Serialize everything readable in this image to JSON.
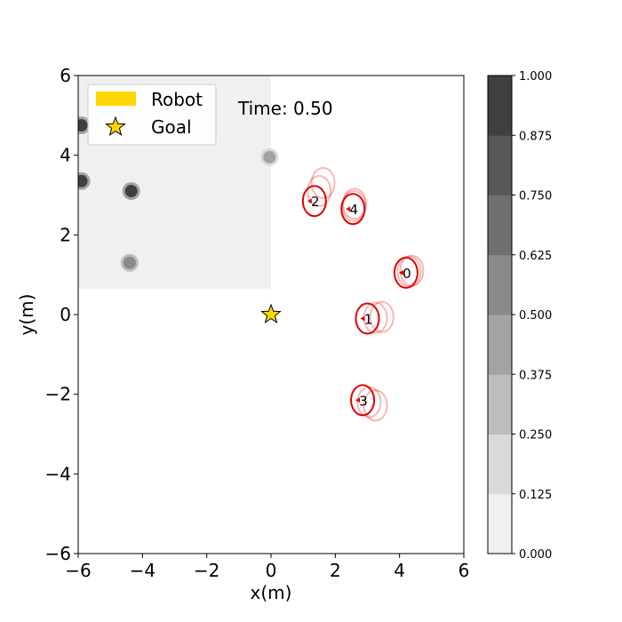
{
  "chart_data": {
    "type": "scatter",
    "title": "",
    "time_label": "Time: 0.50",
    "xlabel": "x(m)",
    "ylabel": "y(m)",
    "xlim": [
      -6,
      6
    ],
    "ylim": [
      -6,
      6
    ],
    "xticks": [
      "−6",
      "−4",
      "−2",
      "0",
      "2",
      "4",
      "6"
    ],
    "yticks": [
      "−6",
      "−4",
      "−2",
      "0",
      "2",
      "4",
      "6"
    ],
    "legend": {
      "placement": "top-left",
      "entries": [
        {
          "label": "Robot",
          "color": "#ffd700",
          "marker": "rectangle"
        },
        {
          "label": "Goal",
          "color": "#ffd700",
          "marker": "star"
        }
      ]
    },
    "goal": {
      "x": 0.0,
      "y": 0.0
    },
    "humans": [
      {
        "id": "0",
        "x": 4.2,
        "y": 1.05,
        "history": [
          {
            "x": 4.3,
            "y": 1.08
          },
          {
            "x": 4.38,
            "y": 1.1
          }
        ]
      },
      {
        "id": "1",
        "x": 3.0,
        "y": -0.1,
        "history": [
          {
            "x": 3.25,
            "y": -0.08
          },
          {
            "x": 3.45,
            "y": -0.06
          }
        ]
      },
      {
        "id": "2",
        "x": 1.35,
        "y": 2.85,
        "history": [
          {
            "x": 1.5,
            "y": 3.1
          },
          {
            "x": 1.62,
            "y": 3.3
          }
        ]
      },
      {
        "id": "3",
        "x": 2.85,
        "y": -2.15,
        "history": [
          {
            "x": 3.05,
            "y": -2.2
          },
          {
            "x": 3.25,
            "y": -2.28
          }
        ]
      },
      {
        "id": "4",
        "x": 2.55,
        "y": 2.65,
        "history": [
          {
            "x": 2.58,
            "y": 2.72
          },
          {
            "x": 2.6,
            "y": 2.78
          }
        ]
      }
    ],
    "occupancy": {
      "region": {
        "x0": -6,
        "x1": 0,
        "y0": 0.65,
        "y1": 6
      },
      "base_level": 0.06,
      "blobs": [
        {
          "x": -5.9,
          "y": 4.75,
          "level": 0.9
        },
        {
          "x": -5.9,
          "y": 3.35,
          "level": 0.95
        },
        {
          "x": -4.35,
          "y": 3.1,
          "level": 0.95
        },
        {
          "x": -4.4,
          "y": 1.3,
          "level": 0.6
        },
        {
          "x": -0.05,
          "y": 3.95,
          "level": 0.4
        }
      ]
    },
    "colorbar": {
      "ticks": [
        "0.000",
        "0.125",
        "0.250",
        "0.375",
        "0.500",
        "0.625",
        "0.750",
        "0.875",
        "1.000"
      ],
      "colors": [
        "#f0f0f0",
        "#d9d9d9",
        "#bdbdbd",
        "#a3a3a3",
        "#8a8a8a",
        "#6f6f6f",
        "#585858",
        "#3f3f3f"
      ]
    },
    "human_color": "#e00000"
  }
}
